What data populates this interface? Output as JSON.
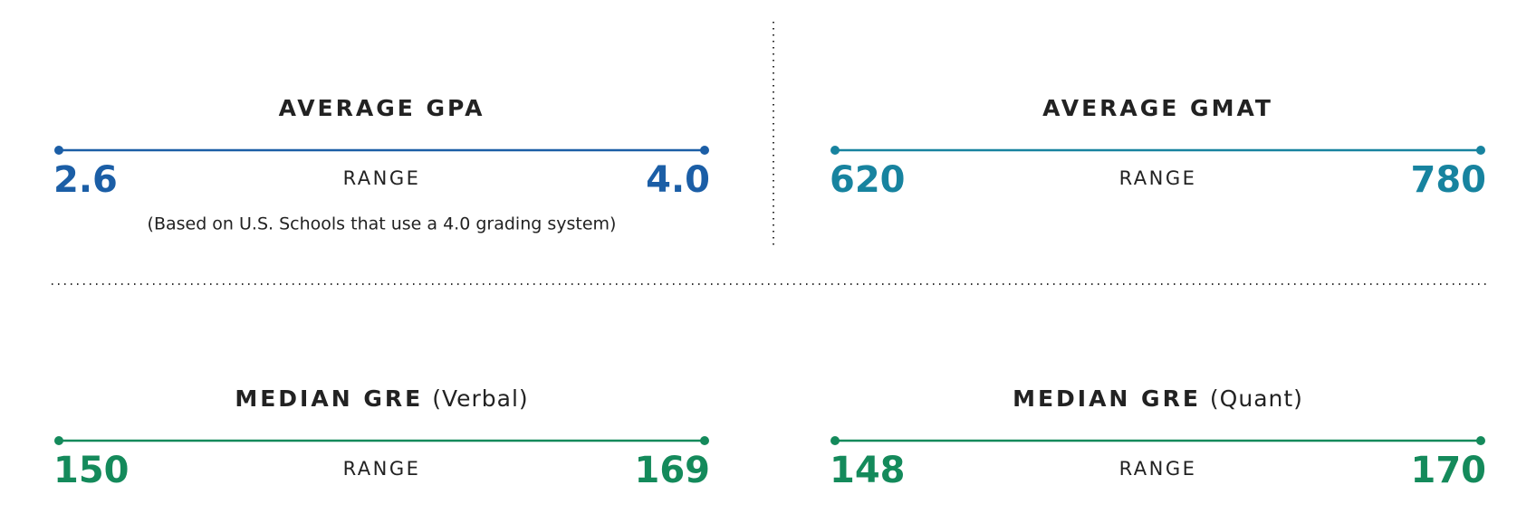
{
  "panels": [
    {
      "title": "AVERAGE GPA",
      "range_label": "RANGE",
      "min": "2.6",
      "max": "4.0",
      "note": "(Based on U.S. Schools that use a 4.0 grading system)",
      "color": "#1b5ea6"
    },
    {
      "title": "AVERAGE GMAT",
      "range_label": "RANGE",
      "min": "620",
      "max": "780",
      "color": "#17839f"
    },
    {
      "title": "MEDIAN GRE",
      "subtitle": "(Verbal)",
      "range_label": "RANGE",
      "min": "150",
      "max": "169",
      "color": "#148a5b"
    },
    {
      "title": "MEDIAN GRE",
      "subtitle": "(Quant)",
      "range_label": "RANGE",
      "min": "148",
      "max": "170",
      "color": "#148a5b"
    }
  ]
}
